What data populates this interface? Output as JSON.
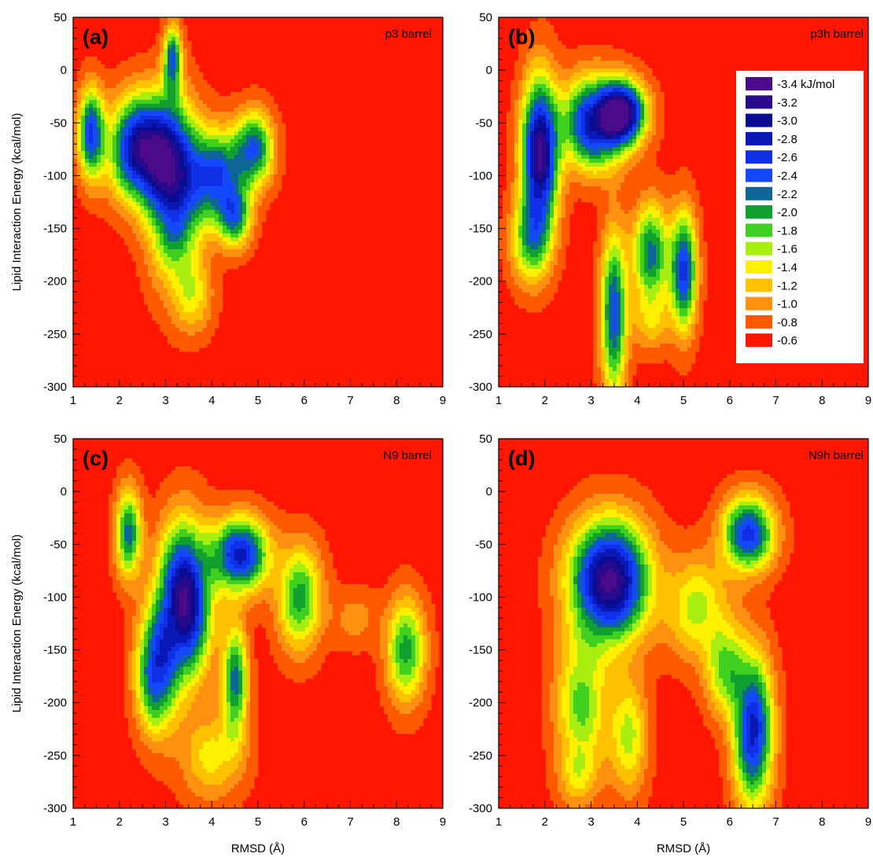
{
  "figure": {
    "ylabel": "Lipid Interaction Energy (kcal/mol)",
    "xlabel": "RMSD (Å)",
    "background_color": "#ff1600"
  },
  "chart_data": [
    {
      "type": "heatmap",
      "panel_letter": "(a)",
      "panel_name": "p3 barrel",
      "xlim": [
        1,
        9
      ],
      "ylim": [
        -300,
        50
      ],
      "xticks": [
        "1",
        "2",
        "3",
        "4",
        "5",
        "6",
        "7",
        "8",
        "9"
      ],
      "yticks": [
        "-300",
        "-250",
        "-200",
        "-150",
        "-100",
        "-50",
        "0",
        "50"
      ],
      "xlabel": "",
      "ylabel": "Lipid Interaction Energy (kcal/mol)",
      "basins": [
        {
          "x": 2.55,
          "y": -75,
          "sx": 0.5,
          "sy": 35,
          "depth": -3.4
        },
        {
          "x": 3.2,
          "y": -115,
          "sx": 0.4,
          "sy": 55,
          "depth": -2.8
        },
        {
          "x": 3.15,
          "y": 10,
          "sx": 0.14,
          "sy": 22,
          "depth": -2.4
        },
        {
          "x": 4.1,
          "y": -100,
          "sx": 0.4,
          "sy": 30,
          "depth": -2.6
        },
        {
          "x": 4.9,
          "y": -75,
          "sx": 0.3,
          "sy": 25,
          "depth": -2.4
        },
        {
          "x": 4.5,
          "y": -140,
          "sx": 0.25,
          "sy": 20,
          "depth": -2.2
        },
        {
          "x": 1.4,
          "y": -60,
          "sx": 0.2,
          "sy": 30,
          "depth": -2.6
        },
        {
          "x": 3.6,
          "y": -215,
          "sx": 0.3,
          "sy": 25,
          "depth": -1.4
        }
      ]
    },
    {
      "type": "heatmap",
      "panel_letter": "(b)",
      "panel_name": "p3h barrel",
      "xlim": [
        1,
        9
      ],
      "ylim": [
        -300,
        50
      ],
      "xticks": [
        "1",
        "2",
        "3",
        "4",
        "5",
        "6",
        "7",
        "8",
        "9"
      ],
      "yticks": [
        "-300",
        "-250",
        "-200",
        "-150",
        "-100",
        "-50",
        "0",
        "50"
      ],
      "xlabel": "",
      "ylabel": "",
      "basins": [
        {
          "x": 1.9,
          "y": -80,
          "sx": 0.28,
          "sy": 50,
          "depth": -3.4
        },
        {
          "x": 3.1,
          "y": -50,
          "sx": 0.5,
          "sy": 30,
          "depth": -3.0
        },
        {
          "x": 3.7,
          "y": -40,
          "sx": 0.35,
          "sy": 20,
          "depth": -3.2
        },
        {
          "x": 3.5,
          "y": -230,
          "sx": 0.2,
          "sy": 55,
          "depth": -2.4
        },
        {
          "x": 4.3,
          "y": -175,
          "sx": 0.3,
          "sy": 35,
          "depth": -2.2
        },
        {
          "x": 5.0,
          "y": -190,
          "sx": 0.2,
          "sy": 40,
          "depth": -2.6
        },
        {
          "x": 1.7,
          "y": -160,
          "sx": 0.3,
          "sy": 30,
          "depth": -2.0
        },
        {
          "x": 4.3,
          "y": -240,
          "sx": 0.3,
          "sy": 20,
          "depth": -1.2
        }
      ]
    },
    {
      "type": "heatmap",
      "panel_letter": "(c)",
      "panel_name": "N9 barrel",
      "xlim": [
        1,
        9
      ],
      "ylim": [
        -300,
        50
      ],
      "xticks": [
        "1",
        "2",
        "3",
        "4",
        "5",
        "6",
        "7",
        "8",
        "9"
      ],
      "yticks": [
        "-300",
        "-250",
        "-200",
        "-150",
        "-100",
        "-50",
        "0",
        "50"
      ],
      "xlabel": "RMSD (Å)",
      "ylabel": "Lipid Interaction Energy (kcal/mol)",
      "basins": [
        {
          "x": 3.4,
          "y": -105,
          "sx": 0.4,
          "sy": 50,
          "depth": -3.4
        },
        {
          "x": 2.8,
          "y": -170,
          "sx": 0.3,
          "sy": 40,
          "depth": -2.6
        },
        {
          "x": 4.6,
          "y": -60,
          "sx": 0.45,
          "sy": 25,
          "depth": -2.8
        },
        {
          "x": 4.5,
          "y": -180,
          "sx": 0.2,
          "sy": 40,
          "depth": -2.2
        },
        {
          "x": 5.9,
          "y": -100,
          "sx": 0.35,
          "sy": 35,
          "depth": -2.0
        },
        {
          "x": 8.2,
          "y": -150,
          "sx": 0.3,
          "sy": 35,
          "depth": -2.0
        },
        {
          "x": 7.1,
          "y": -120,
          "sx": 0.4,
          "sy": 20,
          "depth": -1.0
        },
        {
          "x": 4.0,
          "y": -250,
          "sx": 0.5,
          "sy": 30,
          "depth": -1.4
        },
        {
          "x": 2.2,
          "y": -40,
          "sx": 0.2,
          "sy": 30,
          "depth": -2.2
        }
      ]
    },
    {
      "type": "heatmap",
      "panel_letter": "(d)",
      "panel_name": "N9h barrel",
      "xlim": [
        1,
        9
      ],
      "ylim": [
        -300,
        50
      ],
      "xticks": [
        "1",
        "2",
        "3",
        "4",
        "5",
        "6",
        "7",
        "8",
        "9"
      ],
      "yticks": [
        "-300",
        "-250",
        "-200",
        "-150",
        "-100",
        "-50",
        "0",
        "50"
      ],
      "xlabel": "RMSD (Å)",
      "ylabel": "",
      "basins": [
        {
          "x": 3.4,
          "y": -85,
          "sx": 0.6,
          "sy": 40,
          "depth": -3.4
        },
        {
          "x": 6.5,
          "y": -225,
          "sx": 0.3,
          "sy": 50,
          "depth": -2.8
        },
        {
          "x": 6.4,
          "y": -40,
          "sx": 0.4,
          "sy": 25,
          "depth": -2.6
        },
        {
          "x": 5.3,
          "y": -110,
          "sx": 0.5,
          "sy": 35,
          "depth": -1.6
        },
        {
          "x": 5.9,
          "y": -170,
          "sx": 0.3,
          "sy": 30,
          "depth": -1.8
        },
        {
          "x": 2.8,
          "y": -200,
          "sx": 0.4,
          "sy": 50,
          "depth": -1.8
        },
        {
          "x": 3.8,
          "y": -230,
          "sx": 0.3,
          "sy": 40,
          "depth": -1.6
        },
        {
          "x": 2.7,
          "y": -270,
          "sx": 0.3,
          "sy": 20,
          "depth": -1.2
        }
      ]
    }
  ],
  "legend": {
    "placement": "top-right of panel (b)",
    "entries": [
      {
        "label": "-3.4 kJ/mol",
        "value": -3.4,
        "color": "#4a0a8a"
      },
      {
        "label": "-3.2",
        "value": -3.2,
        "color": "#2a0a8c"
      },
      {
        "label": "-3.0",
        "value": -3.0,
        "color": "#0c0c92"
      },
      {
        "label": "-2.8",
        "value": -2.8,
        "color": "#0a18b8"
      },
      {
        "label": "-2.6",
        "value": -2.6,
        "color": "#1030e8"
      },
      {
        "label": "-2.4",
        "value": -2.4,
        "color": "#1448ff"
      },
      {
        "label": "-2.2",
        "value": -2.2,
        "color": "#0e6696"
      },
      {
        "label": "-2.0",
        "value": -2.0,
        "color": "#10a030"
      },
      {
        "label": "-1.8",
        "value": -1.8,
        "color": "#40d020"
      },
      {
        "label": "-1.6",
        "value": -1.6,
        "color": "#a8ee10"
      },
      {
        "label": "-1.4",
        "value": -1.4,
        "color": "#fff000"
      },
      {
        "label": "-1.2",
        "value": -1.2,
        "color": "#ffc000"
      },
      {
        "label": "-1.0",
        "value": -1.0,
        "color": "#ff9010"
      },
      {
        "label": "-0.8",
        "value": -0.8,
        "color": "#ff5a00"
      },
      {
        "label": "-0.6",
        "value": -0.6,
        "color": "#ff1600"
      }
    ]
  }
}
